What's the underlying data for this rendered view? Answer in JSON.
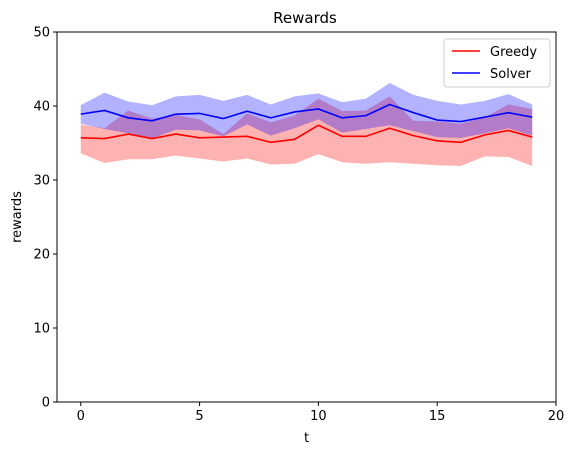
{
  "chart_data": {
    "type": "line",
    "title": "Rewards",
    "xlabel": "t",
    "ylabel": "rewards",
    "xlim": [
      -1,
      20
    ],
    "ylim": [
      0,
      50
    ],
    "xticks": [
      0,
      5,
      10,
      15,
      20
    ],
    "yticks": [
      0,
      10,
      20,
      30,
      40,
      50
    ],
    "grid": false,
    "legend_position": "top-right",
    "x": [
      0,
      1,
      2,
      3,
      4,
      5,
      6,
      7,
      8,
      9,
      10,
      11,
      12,
      13,
      14,
      15,
      16,
      17,
      18,
      19
    ],
    "series": [
      {
        "name": "Greedy",
        "color": "#ff0000",
        "fill_color": "#ff0000",
        "values": [
          35.7,
          35.6,
          36.2,
          35.6,
          36.2,
          35.7,
          35.8,
          35.9,
          35.1,
          35.5,
          37.4,
          35.9,
          35.9,
          37.0,
          36.0,
          35.3,
          35.1,
          36.1,
          36.7,
          35.8
        ],
        "lower": [
          33.6,
          32.3,
          32.8,
          32.8,
          33.3,
          32.9,
          32.5,
          32.9,
          32.1,
          32.2,
          33.5,
          32.4,
          32.2,
          32.4,
          32.2,
          32.0,
          31.9,
          33.2,
          33.1,
          31.9
        ],
        "upper": [
          37.5,
          37.0,
          39.4,
          38.3,
          38.8,
          38.2,
          36.2,
          39.0,
          37.8,
          38.7,
          41.0,
          39.3,
          39.4,
          41.3,
          38.0,
          37.9,
          37.6,
          38.5,
          40.2,
          39.6
        ]
      },
      {
        "name": "Solver",
        "color": "#0000ff",
        "fill_color": "#0000ff",
        "values": [
          38.9,
          39.4,
          38.4,
          38.0,
          38.9,
          39.0,
          38.3,
          39.3,
          38.4,
          39.2,
          39.6,
          38.4,
          38.7,
          40.2,
          39.1,
          38.1,
          37.9,
          38.5,
          39.1,
          38.5
        ],
        "lower": [
          37.6,
          36.9,
          36.3,
          35.6,
          36.8,
          36.7,
          35.9,
          37.5,
          36.0,
          37.0,
          38.2,
          36.4,
          36.9,
          37.4,
          36.6,
          35.8,
          35.7,
          36.3,
          37.0,
          36.0
        ],
        "upper": [
          40.1,
          41.8,
          40.6,
          40.1,
          41.3,
          41.5,
          40.7,
          41.5,
          40.2,
          41.3,
          41.7,
          40.5,
          41.0,
          43.1,
          41.5,
          40.7,
          40.2,
          40.7,
          41.6,
          40.2
        ]
      }
    ]
  }
}
